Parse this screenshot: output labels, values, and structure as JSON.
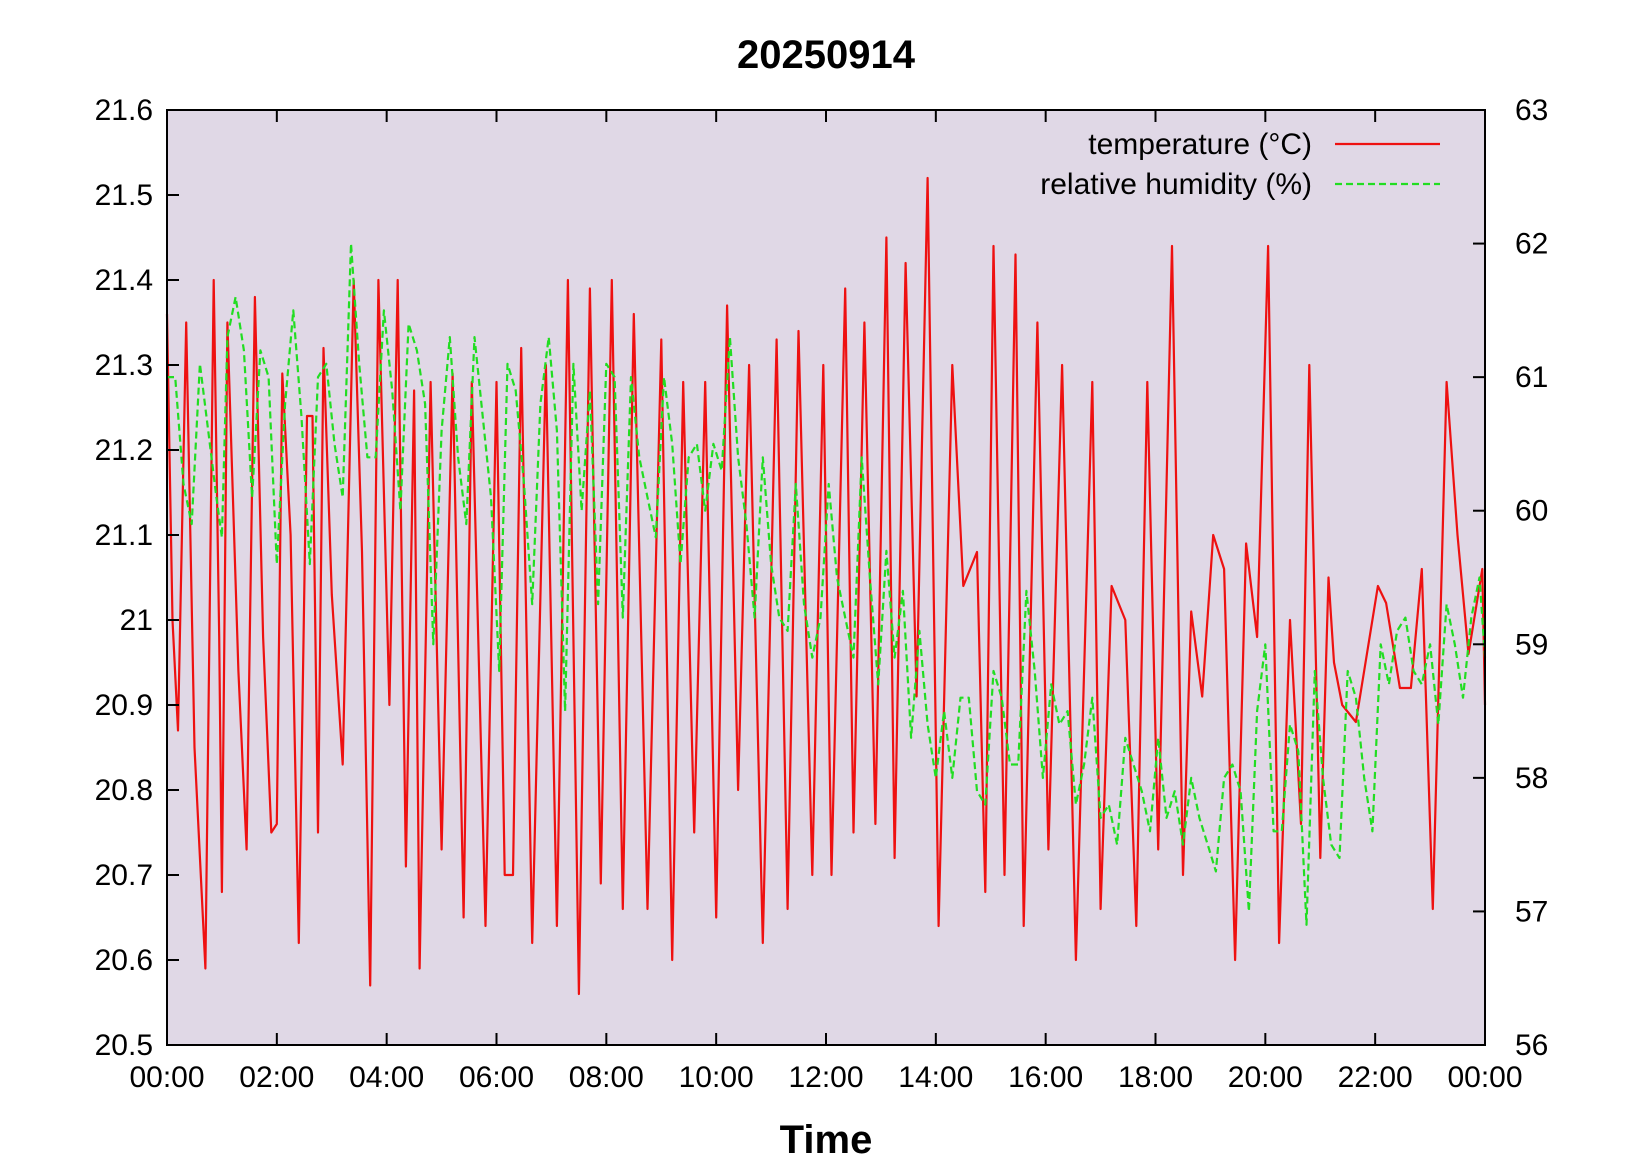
{
  "chart_data": {
    "type": "line",
    "title": "20250914",
    "xlabel": "Time",
    "ylabel": "",
    "y2label": "",
    "x_ticks": [
      "00:00",
      "02:00",
      "04:00",
      "06:00",
      "08:00",
      "10:00",
      "12:00",
      "14:00",
      "16:00",
      "18:00",
      "20:00",
      "22:00",
      "00:00"
    ],
    "xlim_hours": [
      0,
      24
    ],
    "ylim": [
      20.5,
      21.6
    ],
    "y_ticks": [
      "20.5",
      "20.6",
      "20.7",
      "20.8",
      "20.9",
      "21",
      "21.1",
      "21.2",
      "21.3",
      "21.4",
      "21.5",
      "21.6"
    ],
    "y2lim": [
      56,
      63
    ],
    "y2_ticks": [
      "56",
      "57",
      "58",
      "59",
      "60",
      "61",
      "62",
      "63"
    ],
    "grid": false,
    "legend_position": "top-right",
    "plot_background": "#e0d8e6",
    "series": [
      {
        "name": "temperature (°C)",
        "axis": "left",
        "color": "#ee1111",
        "dash": "solid",
        "x_hours": [
          0.0,
          0.1,
          0.2,
          0.35,
          0.5,
          0.7,
          0.85,
          0.95,
          1.0,
          1.1,
          1.3,
          1.45,
          1.6,
          1.75,
          1.9,
          2.0,
          2.1,
          2.25,
          2.4,
          2.55,
          2.65,
          2.75,
          2.85,
          3.0,
          3.2,
          3.4,
          3.55,
          3.7,
          3.85,
          4.05,
          4.2,
          4.35,
          4.5,
          4.6,
          4.8,
          5.0,
          5.2,
          5.4,
          5.55,
          5.8,
          6.0,
          6.15,
          6.3,
          6.45,
          6.65,
          6.9,
          7.1,
          7.3,
          7.5,
          7.7,
          7.9,
          8.1,
          8.3,
          8.5,
          8.75,
          9.0,
          9.2,
          9.4,
          9.6,
          9.8,
          10.0,
          10.2,
          10.4,
          10.6,
          10.85,
          11.1,
          11.3,
          11.5,
          11.75,
          11.95,
          12.1,
          12.35,
          12.5,
          12.7,
          12.9,
          13.1,
          13.25,
          13.45,
          13.65,
          13.85,
          14.05,
          14.3,
          14.5,
          14.75,
          14.9,
          15.05,
          15.25,
          15.45,
          15.6,
          15.85,
          16.05,
          16.3,
          16.55,
          16.85,
          17.0,
          17.2,
          17.45,
          17.65,
          17.85,
          18.05,
          18.3,
          18.5,
          18.65,
          18.85,
          19.05,
          19.25,
          19.45,
          19.65,
          19.85,
          20.05,
          20.25,
          20.45,
          20.65,
          20.8,
          21.0,
          21.15,
          21.25,
          21.4,
          21.65,
          21.85,
          22.05,
          22.2,
          22.45,
          22.65,
          22.85,
          23.05,
          23.3,
          23.5,
          23.7,
          23.95,
          24.0
        ],
        "values": [
          21.36,
          21.0,
          20.87,
          21.35,
          20.85,
          20.59,
          21.4,
          20.98,
          20.68,
          21.35,
          20.94,
          20.73,
          21.38,
          20.98,
          20.75,
          20.76,
          21.29,
          21.1,
          20.62,
          21.24,
          21.24,
          20.75,
          21.32,
          21.03,
          20.83,
          21.4,
          21.08,
          20.57,
          21.4,
          20.9,
          21.4,
          20.71,
          21.27,
          20.59,
          21.28,
          20.73,
          21.29,
          20.65,
          21.28,
          20.64,
          21.28,
          20.7,
          20.7,
          21.32,
          20.62,
          21.3,
          20.64,
          21.4,
          20.56,
          21.39,
          20.69,
          21.4,
          20.66,
          21.36,
          20.66,
          21.33,
          20.6,
          21.28,
          20.75,
          21.28,
          20.65,
          21.37,
          20.8,
          21.3,
          20.62,
          21.33,
          20.66,
          21.34,
          20.7,
          21.3,
          20.7,
          21.39,
          20.75,
          21.35,
          20.76,
          21.45,
          20.72,
          21.42,
          20.91,
          21.52,
          20.64,
          21.3,
          21.04,
          21.08,
          20.68,
          21.44,
          20.7,
          21.43,
          20.64,
          21.35,
          20.73,
          21.3,
          20.6,
          21.28,
          20.66,
          21.04,
          21.0,
          20.64,
          21.28,
          20.73,
          21.44,
          20.7,
          21.01,
          20.91,
          21.1,
          21.06,
          20.6,
          21.09,
          20.98,
          21.44,
          20.62,
          21.0,
          20.76,
          21.3,
          20.72,
          21.05,
          20.95,
          20.9,
          20.88,
          20.96,
          21.04,
          21.02,
          20.92,
          20.92,
          21.06,
          20.66,
          21.28,
          21.1,
          20.96,
          21.06,
          20.9
        ]
      },
      {
        "name": "relative humidity (%)",
        "axis": "right",
        "color": "#22dd22",
        "dash": "dashed",
        "x_hours": [
          0.0,
          0.15,
          0.3,
          0.45,
          0.6,
          0.75,
          0.9,
          1.0,
          1.1,
          1.25,
          1.4,
          1.55,
          1.7,
          1.85,
          2.0,
          2.15,
          2.3,
          2.45,
          2.6,
          2.75,
          2.9,
          3.05,
          3.2,
          3.35,
          3.5,
          3.65,
          3.8,
          3.95,
          4.1,
          4.25,
          4.4,
          4.55,
          4.7,
          4.85,
          5.0,
          5.15,
          5.3,
          5.45,
          5.6,
          5.75,
          5.9,
          6.05,
          6.2,
          6.35,
          6.5,
          6.65,
          6.8,
          6.95,
          7.1,
          7.25,
          7.4,
          7.55,
          7.7,
          7.85,
          8.0,
          8.15,
          8.3,
          8.45,
          8.6,
          8.75,
          8.9,
          9.05,
          9.2,
          9.35,
          9.5,
          9.65,
          9.8,
          9.95,
          10.1,
          10.25,
          10.4,
          10.55,
          10.7,
          10.85,
          11.0,
          11.15,
          11.3,
          11.45,
          11.6,
          11.75,
          11.9,
          12.05,
          12.2,
          12.35,
          12.5,
          12.65,
          12.8,
          12.95,
          13.1,
          13.25,
          13.4,
          13.55,
          13.7,
          13.85,
          14.0,
          14.15,
          14.3,
          14.45,
          14.6,
          14.75,
          14.9,
          15.05,
          15.2,
          15.35,
          15.5,
          15.65,
          15.8,
          15.95,
          16.1,
          16.25,
          16.4,
          16.55,
          16.7,
          16.85,
          17.0,
          17.15,
          17.3,
          17.45,
          17.6,
          17.75,
          17.9,
          18.05,
          18.2,
          18.35,
          18.5,
          18.65,
          18.8,
          18.95,
          19.1,
          19.25,
          19.4,
          19.55,
          19.7,
          19.85,
          20.0,
          20.15,
          20.3,
          20.45,
          20.6,
          20.75,
          20.9,
          21.05,
          21.2,
          21.35,
          21.5,
          21.65,
          21.8,
          21.95,
          22.1,
          22.25,
          22.4,
          22.55,
          22.7,
          22.85,
          23.0,
          23.15,
          23.3,
          23.45,
          23.6,
          23.75,
          23.9,
          24.0
        ],
        "values": [
          61.0,
          61.0,
          60.2,
          59.9,
          61.1,
          60.6,
          60.1,
          59.8,
          61.3,
          61.6,
          61.2,
          60.1,
          61.2,
          61.0,
          59.6,
          60.8,
          61.5,
          60.7,
          59.6,
          61.0,
          61.1,
          60.5,
          60.1,
          62.0,
          61.1,
          60.4,
          60.4,
          61.5,
          60.9,
          60.0,
          61.4,
          61.2,
          60.8,
          59.0,
          60.6,
          61.3,
          60.4,
          59.9,
          61.3,
          60.7,
          60.1,
          58.8,
          61.1,
          60.9,
          60.2,
          59.3,
          60.8,
          61.3,
          60.6,
          58.5,
          61.1,
          60.0,
          60.9,
          59.3,
          61.1,
          61.0,
          59.2,
          61.0,
          60.4,
          60.1,
          59.8,
          61.0,
          60.5,
          59.6,
          60.4,
          60.5,
          60.0,
          60.5,
          60.3,
          61.3,
          60.4,
          59.9,
          59.2,
          60.4,
          59.6,
          59.2,
          59.1,
          60.2,
          59.3,
          58.9,
          59.2,
          60.2,
          59.5,
          59.2,
          58.9,
          60.4,
          59.5,
          58.7,
          59.7,
          58.9,
          59.4,
          58.3,
          59.1,
          58.4,
          58.0,
          58.5,
          58.0,
          58.6,
          58.6,
          57.9,
          57.8,
          58.8,
          58.6,
          58.1,
          58.1,
          59.4,
          58.8,
          58.0,
          58.7,
          58.4,
          58.5,
          57.8,
          58.1,
          58.6,
          57.7,
          57.8,
          57.5,
          58.3,
          58.1,
          57.9,
          57.6,
          58.3,
          57.7,
          57.9,
          57.5,
          58.0,
          57.7,
          57.5,
          57.3,
          58.0,
          58.1,
          57.9,
          57.0,
          58.5,
          59.0,
          57.6,
          57.6,
          58.4,
          58.2,
          56.9,
          58.8,
          58.0,
          57.5,
          57.4,
          58.8,
          58.6,
          58.0,
          57.6,
          59.0,
          58.7,
          59.1,
          59.2,
          58.8,
          58.7,
          59.0,
          58.4,
          59.3,
          59.0,
          58.6,
          59.2,
          59.5,
          58.9
        ]
      }
    ]
  }
}
